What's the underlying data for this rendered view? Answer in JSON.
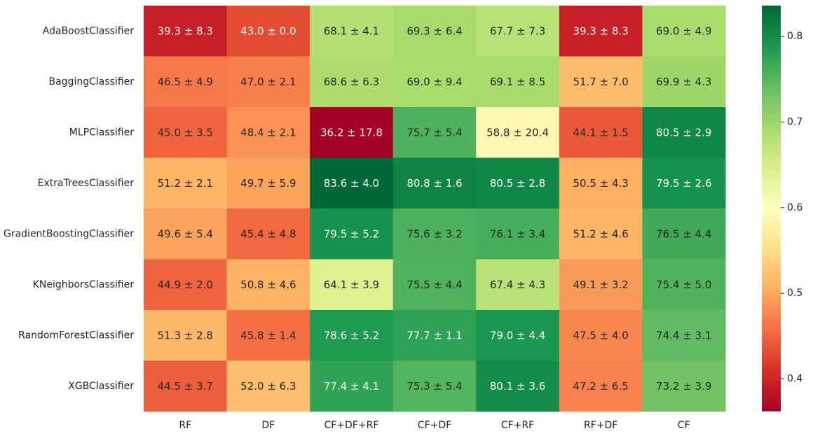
{
  "chart_data": {
    "type": "heatmap",
    "title": "",
    "xlabel": "",
    "ylabel": "",
    "columns": [
      "RF",
      "DF",
      "CF+DF+RF",
      "CF+DF",
      "CF+RF",
      "RF+DF",
      "CF"
    ],
    "rows": [
      "AdaBoostClassifier",
      "BaggingClassifier",
      "MLPClassifier",
      "ExtraTreesClassifier",
      "GradientBoostingClassifier",
      "KNeighborsClassifier",
      "RandomForestClassifier",
      "XGBClassifier"
    ],
    "means": [
      [
        39.3,
        43.0,
        68.1,
        69.3,
        67.7,
        39.3,
        69.0
      ],
      [
        46.5,
        47.0,
        68.6,
        69.0,
        69.1,
        51.7,
        69.9
      ],
      [
        45.0,
        48.4,
        36.2,
        75.7,
        58.8,
        44.1,
        80.5
      ],
      [
        51.2,
        49.7,
        83.6,
        80.8,
        80.5,
        50.5,
        79.5
      ],
      [
        49.6,
        45.4,
        79.5,
        75.6,
        76.1,
        51.2,
        76.5
      ],
      [
        44.9,
        50.8,
        64.1,
        75.5,
        67.4,
        49.1,
        75.4
      ],
      [
        51.3,
        45.8,
        78.6,
        77.7,
        79.0,
        47.5,
        74.4
      ],
      [
        44.5,
        52.0,
        77.4,
        75.3,
        80.1,
        47.2,
        73.2
      ]
    ],
    "labels": [
      [
        "39.3 ± 8.3",
        "43.0 ± 0.0",
        "68.1 ± 4.1",
        "69.3 ± 6.4",
        "67.7 ± 7.3",
        "39.3 ± 8.3",
        "69.0 ± 4.9"
      ],
      [
        "46.5 ± 4.9",
        "47.0 ± 2.1",
        "68.6 ± 6.3",
        "69.0 ± 9.4",
        "69.1 ± 8.5",
        "51.7 ± 7.0",
        "69.9 ± 4.3"
      ],
      [
        "45.0 ± 3.5",
        "48.4 ± 2.1",
        "36.2 ± 17.8",
        "75.7 ± 5.4",
        "58.8 ± 20.4",
        "44.1 ± 1.5",
        "80.5 ± 2.9"
      ],
      [
        "51.2 ± 2.1",
        "49.7 ± 5.9",
        "83.6 ± 4.0",
        "80.8 ± 1.6",
        "80.5 ± 2.8",
        "50.5 ± 4.3",
        "79.5 ± 2.6"
      ],
      [
        "49.6 ± 5.4",
        "45.4 ± 4.8",
        "79.5 ± 5.2",
        "75.6 ± 3.2",
        "76.1 ± 3.4",
        "51.2 ± 4.6",
        "76.5 ± 4.4"
      ],
      [
        "44.9 ± 2.0",
        "50.8 ± 4.6",
        "64.1 ± 3.9",
        "75.5 ± 4.4",
        "67.4 ± 4.3",
        "49.1 ± 3.2",
        "75.4 ± 5.0"
      ],
      [
        "51.3 ± 2.8",
        "45.8 ± 1.4",
        "78.6 ± 5.2",
        "77.7 ± 1.1",
        "79.0 ± 4.4",
        "47.5 ± 4.0",
        "74.4 ± 3.1"
      ],
      [
        "44.5 ± 3.7",
        "52.0 ± 6.3",
        "77.4 ± 4.1",
        "75.3 ± 5.4",
        "80.1 ± 3.6",
        "47.2 ± 6.5",
        "73.2 ± 3.9"
      ]
    ],
    "colorbar": {
      "min": 0.362,
      "max": 0.836,
      "ticks": [
        0.4,
        0.5,
        0.6,
        0.7,
        0.8
      ],
      "tick_labels": [
        "0.4",
        "0.5",
        "0.6",
        "0.7",
        "0.8"
      ],
      "colormap": "RdYlGn",
      "colormap_stops": [
        "#a50026",
        "#d73027",
        "#f46d43",
        "#fdae61",
        "#fee08b",
        "#ffffbf",
        "#d9ef8b",
        "#a6d96a",
        "#66bd63",
        "#1a9850",
        "#006837"
      ]
    },
    "grid": false,
    "legend": "colorbar-right"
  }
}
